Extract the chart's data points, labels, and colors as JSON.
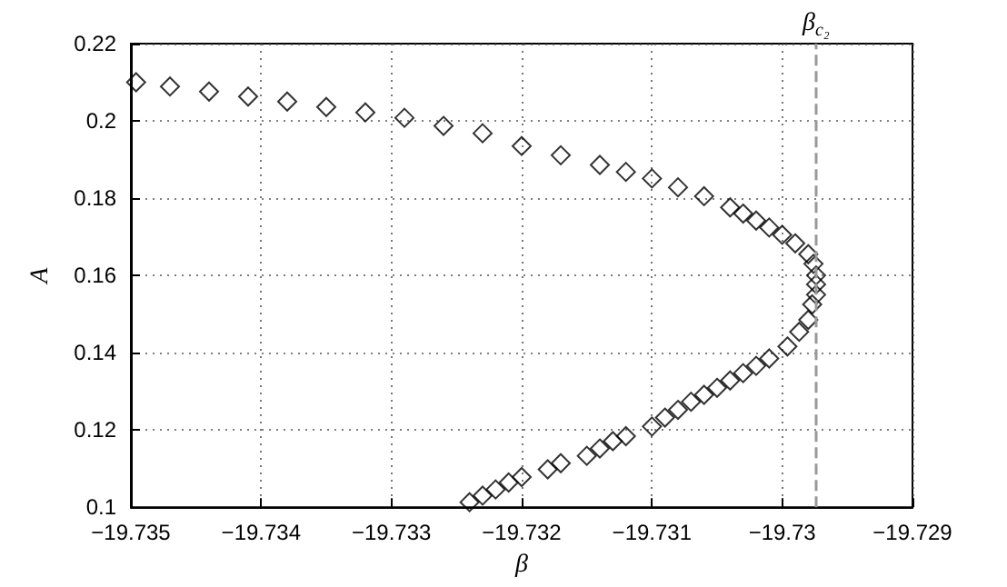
{
  "chart_data": {
    "type": "scatter",
    "xlabel": "β",
    "ylabel": "A",
    "x": [
      -19.73496,
      -19.7347,
      -19.7344,
      -19.7341,
      -19.7338,
      -19.7335,
      -19.7332,
      -19.7329,
      -19.7326,
      -19.7323,
      -19.732,
      -19.7317,
      -19.7314,
      -19.7312,
      -19.731,
      -19.7308,
      -19.7306,
      -19.7304,
      -19.7303,
      -19.7302,
      -19.7301,
      -19.73,
      -19.7299,
      -19.7298,
      -19.72976,
      -19.72974,
      -19.72974,
      -19.72974,
      -19.72977,
      -19.7298,
      -19.72987,
      -19.72996,
      -19.7301,
      -19.7302,
      -19.7303,
      -19.7304,
      -19.7305,
      -19.7306,
      -19.7307,
      -19.7308,
      -19.7309,
      -19.731,
      -19.7312,
      -19.7313,
      -19.7314,
      -19.7315,
      -19.7317,
      -19.7318,
      -19.732,
      -19.7321,
      -19.7322,
      -19.7323,
      -19.7324
    ],
    "values": [
      0.21,
      0.2089,
      0.2076,
      0.2063,
      0.205,
      0.2036,
      0.2022,
      0.2008,
      0.1987,
      0.1968,
      0.1935,
      0.1911,
      0.1886,
      0.1868,
      0.1851,
      0.1828,
      0.1805,
      0.1776,
      0.176,
      0.1742,
      0.1724,
      0.1705,
      0.1683,
      0.1655,
      0.163,
      0.16,
      0.1577,
      0.155,
      0.1525,
      0.1485,
      0.1454,
      0.1416,
      0.1385,
      0.1366,
      0.1347,
      0.1328,
      0.1309,
      0.1291,
      0.1273,
      0.1252,
      0.1232,
      0.1209,
      0.1184,
      0.1171,
      0.1152,
      0.1133,
      0.1114,
      0.1098,
      0.1078,
      0.1064,
      0.1046,
      0.103,
      0.1013
    ],
    "color": "#000000",
    "marker": "diamond",
    "xlim": [
      -19.735,
      -19.729
    ],
    "xticks": [
      -19.735,
      -19.734,
      -19.733,
      -19.732,
      -19.731,
      -19.73,
      -19.729
    ],
    "ylim": [
      0.1,
      0.22
    ],
    "yticks": [
      0.1,
      0.12,
      0.14,
      0.16,
      0.18,
      0.2,
      0.22
    ],
    "grid": true,
    "ref_lines": [
      {
        "axis": "x",
        "value": -19.72974,
        "label": "β$_{c₂}$",
        "color": "#999999",
        "line_style": "dashed"
      }
    ]
  }
}
